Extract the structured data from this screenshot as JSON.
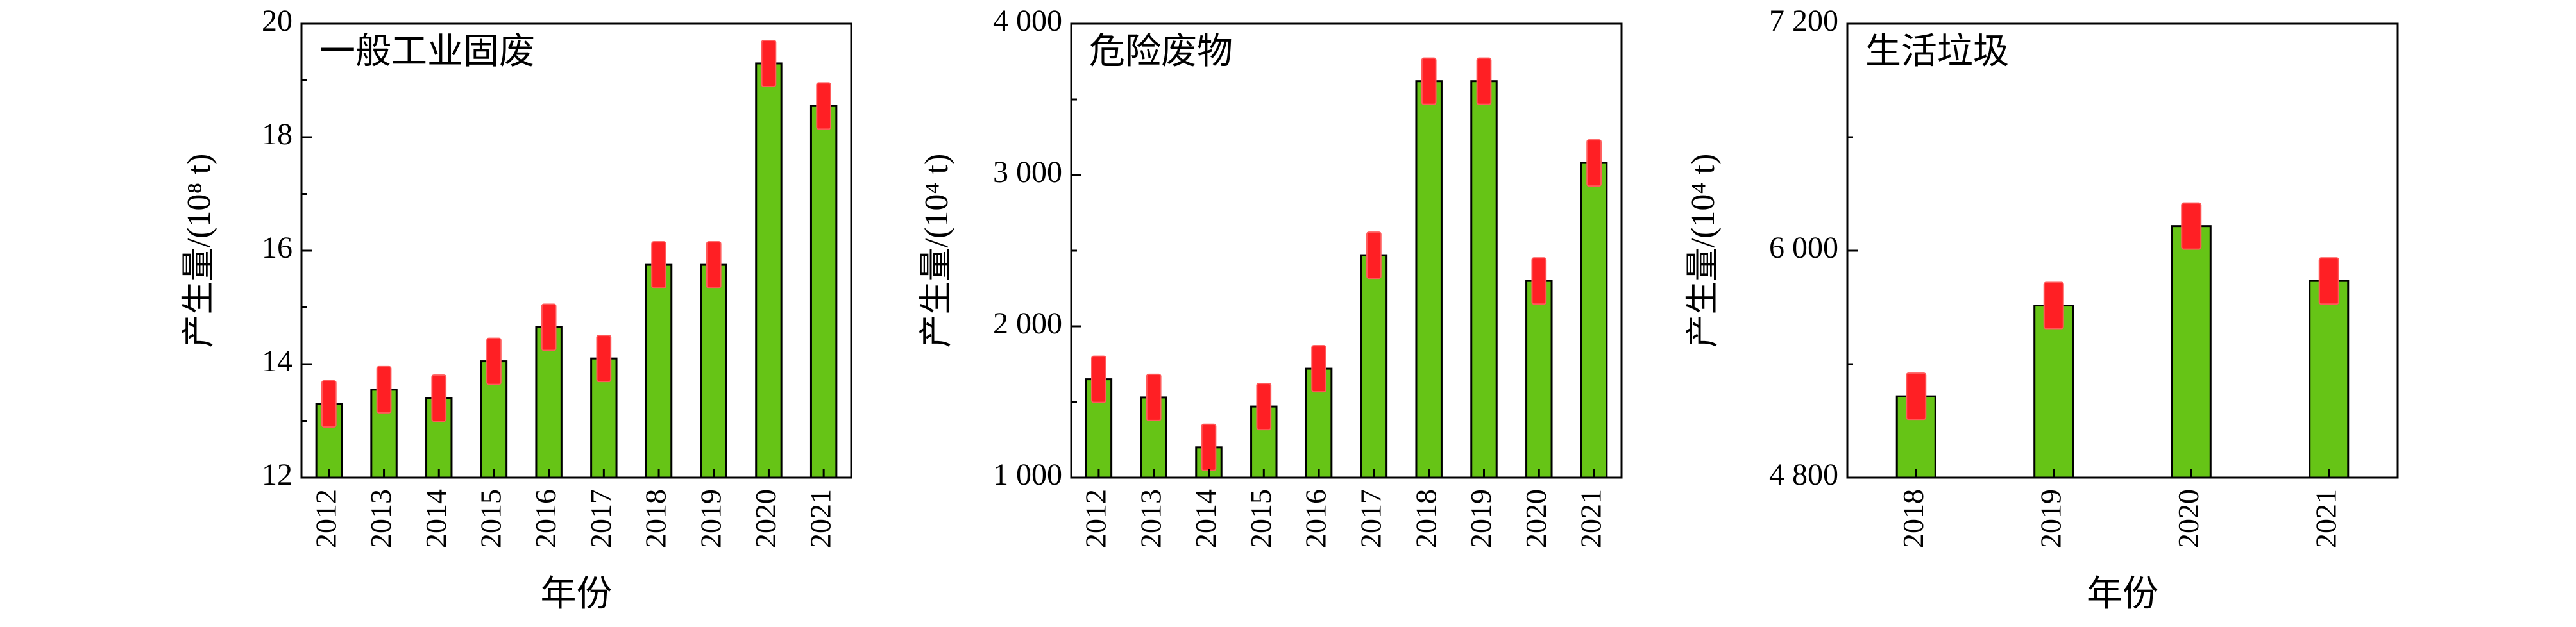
{
  "colors": {
    "bar": "#66c416",
    "marker": "#ff1f24",
    "axis": "#000000"
  },
  "chart_data": [
    {
      "type": "bar",
      "title": "一般工业固废",
      "xlabel": "年份",
      "ylabel": "产生量/(10⁸ t)",
      "categories": [
        "2012",
        "2013",
        "2014",
        "2015",
        "2016",
        "2017",
        "2018",
        "2019",
        "2020",
        "2021"
      ],
      "values": [
        13.3,
        13.55,
        13.4,
        14.05,
        14.65,
        14.1,
        15.75,
        15.75,
        19.3,
        18.55
      ],
      "error_markers": [
        13.3,
        13.55,
        13.4,
        14.05,
        14.65,
        14.1,
        15.75,
        15.75,
        19.3,
        18.55
      ],
      "ylim": [
        12,
        20
      ],
      "yticks": [
        12,
        14,
        16,
        18,
        20
      ],
      "ytick_labels": [
        "12",
        "14",
        "16",
        "18",
        "20"
      ],
      "grid": false,
      "legend": "none"
    },
    {
      "type": "bar",
      "title": "危险废物",
      "xlabel": "",
      "ylabel": "产生量/(10⁴ t)",
      "categories": [
        "2012",
        "2013",
        "2014",
        "2015",
        "2016",
        "2017",
        "2018",
        "2019",
        "2020",
        "2021"
      ],
      "values": [
        1650,
        1530,
        1200,
        1470,
        1720,
        2470,
        3620,
        3620,
        2300,
        3080
      ],
      "error_markers": [
        1650,
        1530,
        1200,
        1470,
        1720,
        2470,
        3620,
        3620,
        2300,
        3080
      ],
      "ylim": [
        1000,
        4000
      ],
      "yticks": [
        1000,
        2000,
        3000,
        4000
      ],
      "ytick_labels": [
        "1 000",
        "2 000",
        "3 000",
        "4 000"
      ],
      "grid": false,
      "legend": "none"
    },
    {
      "type": "bar",
      "title": "生活垃圾",
      "xlabel": "年份",
      "ylabel": "产生量/(10⁴ t)",
      "categories": [
        "2018",
        "2019",
        "2020",
        "2021"
      ],
      "values": [
        5230,
        5710,
        6130,
        5840
      ],
      "error_markers": [
        5230,
        5710,
        6130,
        5840
      ],
      "ylim": [
        4800,
        7200
      ],
      "yticks": [
        4800,
        6000,
        7200
      ],
      "ytick_labels": [
        "4 800",
        "6 000",
        "7 200"
      ],
      "grid": false,
      "legend": "none"
    }
  ]
}
